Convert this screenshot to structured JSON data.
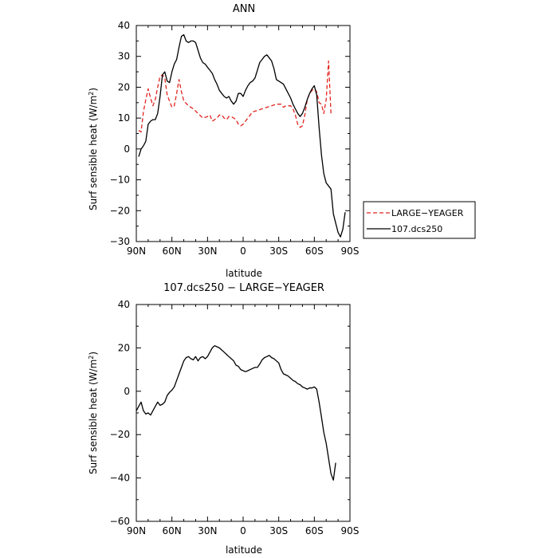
{
  "chart_data": [
    {
      "type": "line",
      "title": "ANN",
      "xlabel": "latitude",
      "ylabel_main": "Surf sensible heat (W/m",
      "ylabel_sup": "2",
      "ylabel_end": ")",
      "xlim": [
        90,
        -90
      ],
      "ylim": [
        -30,
        40
      ],
      "xticks": [
        90,
        60,
        30,
        0,
        -30,
        -60,
        -90
      ],
      "xtick_labels": [
        "90N",
        "60N",
        "30N",
        "0",
        "30S",
        "60S",
        "90S"
      ],
      "yticks": [
        -30,
        -20,
        -10,
        0,
        10,
        20,
        30,
        40
      ],
      "ytick_labels": [
        "−30",
        "−20",
        "−10",
        "0",
        "10",
        "20",
        "30",
        "40"
      ],
      "legend_position": "right",
      "series": [
        {
          "name": "LARGE−YEAGER",
          "color": "#e0251f",
          "dash": "dashed",
          "points": [
            [
              88,
              6
            ],
            [
              86,
              5.5
            ],
            [
              84,
              12
            ],
            [
              82,
              16
            ],
            [
              80,
              19.5
            ],
            [
              78,
              16.5
            ],
            [
              76,
              14
            ],
            [
              74,
              16
            ],
            [
              72,
              20
            ],
            [
              70,
              23.5
            ],
            [
              68,
              24
            ],
            [
              66,
              23
            ],
            [
              64,
              17.5
            ],
            [
              62,
              15.5
            ],
            [
              60,
              13.5
            ],
            [
              58,
              14
            ],
            [
              56,
              18
            ],
            [
              54,
              22.5
            ],
            [
              52,
              18.5
            ],
            [
              50,
              15.5
            ],
            [
              46,
              14
            ],
            [
              42,
              13
            ],
            [
              38,
              11.5
            ],
            [
              34,
              10
            ],
            [
              30,
              10.5
            ],
            [
              28,
              11
            ],
            [
              26,
              9
            ],
            [
              24,
              9.5
            ],
            [
              22,
              10
            ],
            [
              20,
              11
            ],
            [
              18,
              11
            ],
            [
              16,
              10
            ],
            [
              14,
              9.5
            ],
            [
              12,
              10.5
            ],
            [
              10,
              10.5
            ],
            [
              8,
              10
            ],
            [
              6,
              9.5
            ],
            [
              4,
              8
            ],
            [
              2,
              7.5
            ],
            [
              0,
              8
            ],
            [
              -2,
              9
            ],
            [
              -4,
              10
            ],
            [
              -8,
              12
            ],
            [
              -12,
              12.5
            ],
            [
              -16,
              13
            ],
            [
              -20,
              13.5
            ],
            [
              -24,
              14
            ],
            [
              -28,
              14.5
            ],
            [
              -32,
              14.5
            ],
            [
              -34,
              13.5
            ],
            [
              -36,
              14
            ],
            [
              -40,
              14
            ],
            [
              -42,
              13
            ],
            [
              -44,
              11
            ],
            [
              -46,
              8
            ],
            [
              -48,
              7
            ],
            [
              -50,
              7.5
            ],
            [
              -52,
              11
            ],
            [
              -54,
              16
            ],
            [
              -56,
              18
            ],
            [
              -58,
              19
            ],
            [
              -60,
              19.5
            ],
            [
              -62,
              18.5
            ],
            [
              -64,
              15
            ],
            [
              -66,
              14.5
            ],
            [
              -68,
              11.5
            ],
            [
              -70,
              16
            ],
            [
              -72,
              28.5
            ],
            [
              -74,
              11.5
            ]
          ]
        },
        {
          "name": "107.dcs250",
          "color": "#000000",
          "dash": "solid",
          "points": [
            [
              88,
              -2.5
            ],
            [
              86,
              0
            ],
            [
              84,
              1
            ],
            [
              82,
              2.5
            ],
            [
              80,
              8
            ],
            [
              78,
              9
            ],
            [
              76,
              9.5
            ],
            [
              74,
              9.5
            ],
            [
              72,
              11.5
            ],
            [
              70,
              17
            ],
            [
              68,
              24
            ],
            [
              66,
              25
            ],
            [
              64,
              22
            ],
            [
              62,
              21.5
            ],
            [
              60,
              25
            ],
            [
              58,
              27.5
            ],
            [
              56,
              29
            ],
            [
              54,
              33
            ],
            [
              52,
              36.5
            ],
            [
              50,
              37
            ],
            [
              48,
              35
            ],
            [
              46,
              34.5
            ],
            [
              44,
              35
            ],
            [
              42,
              35
            ],
            [
              40,
              34.5
            ],
            [
              38,
              32
            ],
            [
              36,
              29.5
            ],
            [
              34,
              28
            ],
            [
              32,
              27.5
            ],
            [
              30,
              26.5
            ],
            [
              28,
              25.5
            ],
            [
              26,
              24.5
            ],
            [
              24,
              22.5
            ],
            [
              22,
              21
            ],
            [
              20,
              19
            ],
            [
              18,
              18
            ],
            [
              16,
              17
            ],
            [
              14,
              16.5
            ],
            [
              12,
              17
            ],
            [
              10,
              15.5
            ],
            [
              8,
              14.5
            ],
            [
              6,
              15.5
            ],
            [
              4,
              18
            ],
            [
              2,
              18
            ],
            [
              0,
              17
            ],
            [
              -2,
              19
            ],
            [
              -4,
              20.5
            ],
            [
              -6,
              21.5
            ],
            [
              -8,
              22
            ],
            [
              -10,
              23
            ],
            [
              -12,
              25.5
            ],
            [
              -14,
              28
            ],
            [
              -16,
              29
            ],
            [
              -18,
              30
            ],
            [
              -20,
              30.5
            ],
            [
              -22,
              29.5
            ],
            [
              -24,
              28.5
            ],
            [
              -26,
              26
            ],
            [
              -28,
              22.5
            ],
            [
              -30,
              22
            ],
            [
              -32,
              21.5
            ],
            [
              -34,
              21
            ],
            [
              -36,
              19.5
            ],
            [
              -38,
              18
            ],
            [
              -40,
              16.5
            ],
            [
              -42,
              14.5
            ],
            [
              -44,
              13
            ],
            [
              -46,
              11.5
            ],
            [
              -48,
              10.5
            ],
            [
              -50,
              11.5
            ],
            [
              -52,
              13.5
            ],
            [
              -54,
              16
            ],
            [
              -56,
              18
            ],
            [
              -58,
              19.5
            ],
            [
              -60,
              20.5
            ],
            [
              -62,
              17.5
            ],
            [
              -64,
              7
            ],
            [
              -66,
              -2
            ],
            [
              -68,
              -8
            ],
            [
              -70,
              -11
            ],
            [
              -72,
              -12
            ],
            [
              -74,
              -13
            ],
            [
              -76,
              -21
            ],
            [
              -78,
              -24
            ],
            [
              -80,
              -27
            ],
            [
              -82,
              -28.5
            ],
            [
              -84,
              -26
            ],
            [
              -86,
              -20.5
            ]
          ]
        }
      ]
    },
    {
      "type": "line",
      "title": "107.dcs250 − LARGE−YEAGER",
      "xlabel": "latitude",
      "ylabel_main": "Surf sensible heat (W/m",
      "ylabel_sup": "2",
      "ylabel_end": ")",
      "xlim": [
        90,
        -90
      ],
      "ylim": [
        -60,
        40
      ],
      "xticks": [
        90,
        60,
        30,
        0,
        -30,
        -60,
        -90
      ],
      "xtick_labels": [
        "90N",
        "60N",
        "30N",
        "0",
        "30S",
        "60S",
        "90S"
      ],
      "yticks": [
        -60,
        -40,
        -20,
        0,
        20,
        40
      ],
      "ytick_labels": [
        "−60",
        "−40",
        "−20",
        "0",
        "20",
        "40"
      ],
      "series": [
        {
          "name": "",
          "color": "#000000",
          "dash": "solid",
          "points": [
            [
              90,
              -9
            ],
            [
              88,
              -7
            ],
            [
              86,
              -5
            ],
            [
              84,
              -9
            ],
            [
              82,
              -10.5
            ],
            [
              80,
              -10
            ],
            [
              78,
              -11
            ],
            [
              76,
              -9
            ],
            [
              74,
              -7
            ],
            [
              72,
              -5
            ],
            [
              70,
              -6.5
            ],
            [
              68,
              -6
            ],
            [
              66,
              -5
            ],
            [
              64,
              -2
            ],
            [
              62,
              -0.5
            ],
            [
              60,
              0.5
            ],
            [
              58,
              2
            ],
            [
              56,
              5
            ],
            [
              54,
              8
            ],
            [
              52,
              11
            ],
            [
              50,
              14
            ],
            [
              48,
              15.5
            ],
            [
              46,
              16
            ],
            [
              44,
              15
            ],
            [
              42,
              14.5
            ],
            [
              40,
              16
            ],
            [
              38,
              14
            ],
            [
              36,
              15.5
            ],
            [
              34,
              16
            ],
            [
              32,
              15
            ],
            [
              30,
              16
            ],
            [
              28,
              18
            ],
            [
              26,
              20
            ],
            [
              24,
              21
            ],
            [
              22,
              20.5
            ],
            [
              20,
              20
            ],
            [
              18,
              19
            ],
            [
              16,
              18
            ],
            [
              14,
              17
            ],
            [
              12,
              16
            ],
            [
              10,
              15
            ],
            [
              8,
              14
            ],
            [
              6,
              12
            ],
            [
              4,
              11.5
            ],
            [
              2,
              10
            ],
            [
              0,
              9.5
            ],
            [
              -2,
              9
            ],
            [
              -4,
              9.5
            ],
            [
              -6,
              10
            ],
            [
              -8,
              10.5
            ],
            [
              -10,
              11
            ],
            [
              -12,
              11
            ],
            [
              -14,
              12.5
            ],
            [
              -16,
              14.5
            ],
            [
              -18,
              15.5
            ],
            [
              -20,
              16
            ],
            [
              -22,
              16.5
            ],
            [
              -24,
              15.5
            ],
            [
              -26,
              15
            ],
            [
              -28,
              14
            ],
            [
              -30,
              13
            ],
            [
              -32,
              10
            ],
            [
              -34,
              8
            ],
            [
              -36,
              7.5
            ],
            [
              -38,
              7
            ],
            [
              -40,
              6
            ],
            [
              -42,
              5
            ],
            [
              -44,
              4.5
            ],
            [
              -46,
              3.5
            ],
            [
              -48,
              3
            ],
            [
              -50,
              2
            ],
            [
              -52,
              1.5
            ],
            [
              -54,
              1
            ],
            [
              -56,
              1.5
            ],
            [
              -58,
              1.5
            ],
            [
              -60,
              2
            ],
            [
              -62,
              1
            ],
            [
              -64,
              -5
            ],
            [
              -66,
              -12
            ],
            [
              -68,
              -19
            ],
            [
              -70,
              -24
            ],
            [
              -72,
              -31
            ],
            [
              -74,
              -38
            ],
            [
              -76,
              -41
            ],
            [
              -78,
              -33
            ]
          ]
        }
      ]
    }
  ]
}
